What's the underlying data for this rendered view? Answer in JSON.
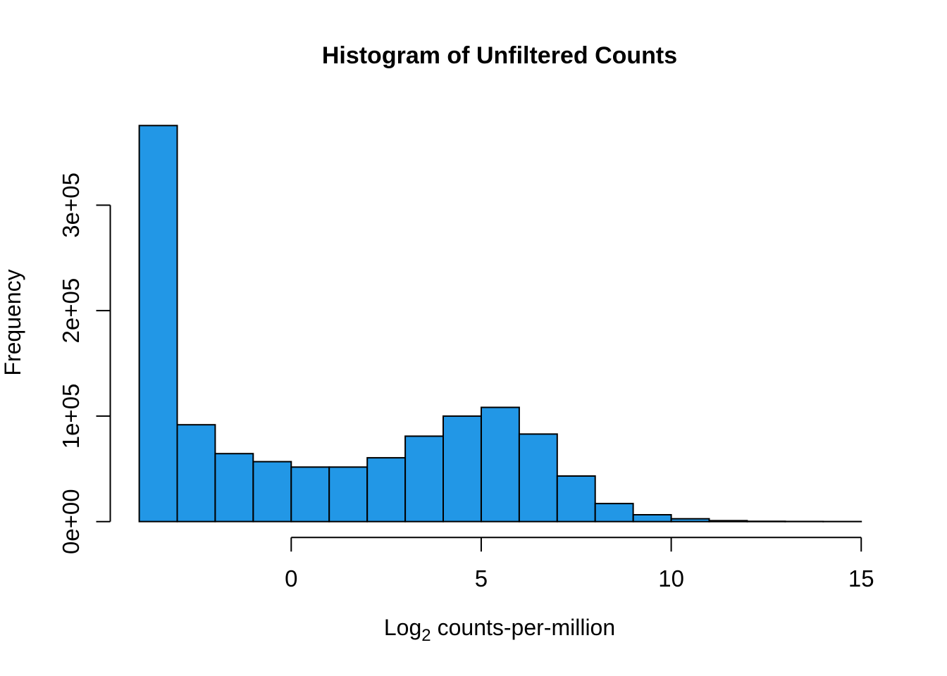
{
  "chart_data": {
    "type": "bar",
    "subtype": "histogram",
    "title": "Histogram of Unfiltered Counts",
    "xlabel": {
      "prefix": "Log",
      "subscript": "2",
      "suffix": "counts-per-million"
    },
    "ylabel": "Frequency",
    "bar_fill_color": "#2297E6",
    "bar_border_color": "#000000",
    "background_color": "#FFFFFF",
    "bin_start": -4,
    "bin_width": 1,
    "bin_edges": [
      -4,
      -3,
      -2,
      -1,
      0,
      1,
      2,
      3,
      4,
      5,
      6,
      7,
      8,
      9,
      10,
      11,
      12,
      13,
      14,
      15
    ],
    "counts": [
      375500,
      91800,
      64400,
      56800,
      51700,
      51700,
      60500,
      81000,
      100000,
      108300,
      83000,
      43200,
      17100,
      6500,
      2700,
      900,
      300,
      150,
      80
    ],
    "x_ticks": [
      {
        "value": 0,
        "label": "0"
      },
      {
        "value": 5,
        "label": "5"
      },
      {
        "value": 10,
        "label": "10"
      },
      {
        "value": 15,
        "label": "15"
      }
    ],
    "y_ticks": [
      {
        "value": 0,
        "label": "0e+00"
      },
      {
        "value": 100000,
        "label": "1e+05"
      },
      {
        "value": 200000,
        "label": "2e+05"
      },
      {
        "value": 300000,
        "label": "3e+05"
      }
    ],
    "xlim": [
      -4,
      15
    ],
    "ylim": [
      0,
      375500
    ],
    "grid": "off",
    "legend": "none"
  }
}
